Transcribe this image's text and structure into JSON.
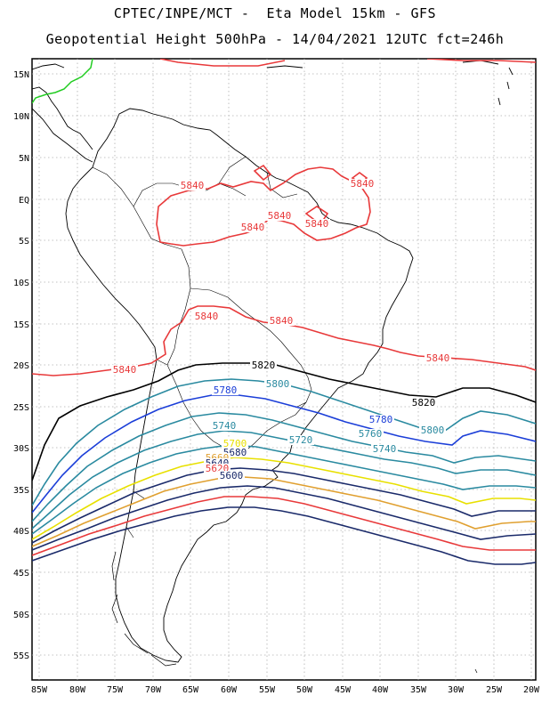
{
  "title_line1": "CPTEC/INPE/MCT -  Eta Model 15km - GFS",
  "title_line2": "Geopotential Height 500hPa - 14/04/2021 12UTC fct=246h",
  "lat_ticks": [
    "15N",
    "10N",
    "5N",
    "EQ",
    "5S",
    "10S",
    "15S",
    "20S",
    "25S",
    "30S",
    "35S",
    "40S",
    "45S",
    "50S",
    "55S"
  ],
  "lon_ticks": [
    "85W",
    "80W",
    "75W",
    "70W",
    "65W",
    "60W",
    "55W",
    "50W",
    "45W",
    "40W",
    "35W",
    "30W",
    "25W",
    "20W"
  ],
  "contour_labels": [
    {
      "text": "5840",
      "color": "#e8393a"
    },
    {
      "text": "5840",
      "color": "#e8393a"
    },
    {
      "text": "5840",
      "color": "#e8393a"
    },
    {
      "text": "5840",
      "color": "#e8393a"
    },
    {
      "text": "5840",
      "color": "#e8393a"
    },
    {
      "text": "5840",
      "color": "#e8393a"
    },
    {
      "text": "5840",
      "color": "#e8393a"
    },
    {
      "text": "5840",
      "color": "#e8393a"
    },
    {
      "text": "5840",
      "color": "#e8393a"
    },
    {
      "text": "5820",
      "color": "#000000"
    },
    {
      "text": "5820",
      "color": "#000000"
    },
    {
      "text": "5800",
      "color": "#2a8aa0"
    },
    {
      "text": "5800",
      "color": "#2a8aa0"
    },
    {
      "text": "5780",
      "color": "#1b3ed8"
    },
    {
      "text": "5780",
      "color": "#1b3ed8"
    },
    {
      "text": "5760",
      "color": "#2a8aa0"
    },
    {
      "text": "5740",
      "color": "#2a8aa0"
    },
    {
      "text": "5740",
      "color": "#2a8aa0"
    },
    {
      "text": "5720",
      "color": "#2a8aa0"
    },
    {
      "text": "5700",
      "color": "#e8e000"
    },
    {
      "text": "5680",
      "color": "#1a2a6a"
    },
    {
      "text": "5660",
      "color": "#e0a030"
    },
    {
      "text": "5640",
      "color": "#1a2a6a"
    },
    {
      "text": "5620",
      "color": "#e8393a"
    },
    {
      "text": "5600",
      "color": "#1a2a6a"
    }
  ]
}
